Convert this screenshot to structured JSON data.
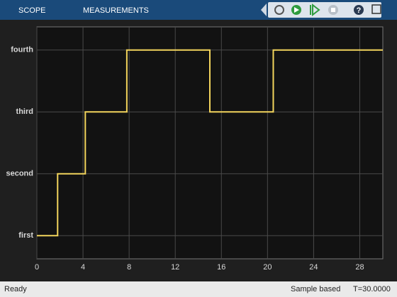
{
  "toolbar": {
    "tabs": [
      "SCOPE",
      "MEASUREMENTS"
    ]
  },
  "chart_data": {
    "type": "line",
    "x": [
      0,
      1.8,
      1.8,
      4.2,
      4.2,
      7.8,
      7.8,
      15,
      15,
      20.5,
      20.5,
      30
    ],
    "series": [
      {
        "color": "#f2d45c",
        "values": [
          1,
          1,
          2,
          2,
          3,
          3,
          4,
          4,
          3,
          3,
          4,
          4
        ]
      }
    ],
    "xlim": [
      0,
      30
    ],
    "xticks": [
      0,
      4,
      8,
      12,
      16,
      20,
      24,
      28
    ],
    "ylim": [
      0.625,
      4.375
    ],
    "yticks": [
      {
        "value": 1,
        "label": "first"
      },
      {
        "value": 2,
        "label": "second"
      },
      {
        "value": 3,
        "label": "third"
      },
      {
        "value": 4,
        "label": "fourth"
      }
    ],
    "grid": true
  },
  "status": {
    "state": "Ready",
    "mode": "Sample based",
    "time": "T=30.0000"
  }
}
